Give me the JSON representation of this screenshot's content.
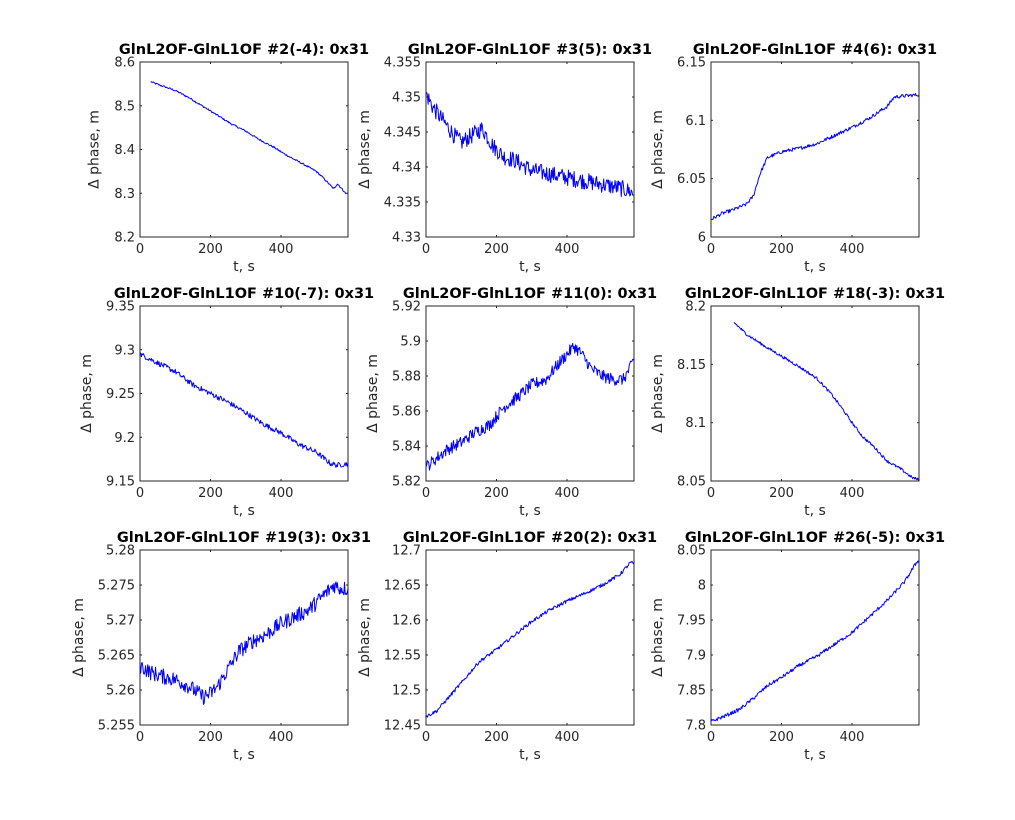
{
  "colors": {
    "line": "#0000ff",
    "axes": "#262626",
    "background": "#ffffff"
  },
  "chart_data": [
    {
      "type": "line",
      "title": "GlnL2OF-GlnL1OF #2(-4): 0x31",
      "xlabel": "t, s",
      "ylabel": "Δ phase, m",
      "xlim": [
        0,
        590
      ],
      "ylim": [
        8.2,
        8.6
      ],
      "xticks": [
        0,
        200,
        400
      ],
      "xtick_labels": [
        "0",
        "200",
        "400"
      ],
      "yticks": [
        8.2,
        8.3,
        8.4,
        8.5,
        8.6
      ],
      "ytick_labels": [
        "8.2",
        "8.3",
        "8.4",
        "8.5",
        "8.6"
      ],
      "series": [
        {
          "x": [
            30,
            60,
            100,
            140,
            180,
            220,
            260,
            300,
            340,
            380,
            420,
            460,
            500,
            520,
            540,
            550,
            560,
            575,
            585
          ],
          "y": [
            8.555,
            8.546,
            8.535,
            8.518,
            8.498,
            8.478,
            8.458,
            8.442,
            8.422,
            8.405,
            8.385,
            8.368,
            8.35,
            8.335,
            8.318,
            8.31,
            8.322,
            8.308,
            8.298
          ],
          "noise": 0.002
        }
      ]
    },
    {
      "type": "line",
      "title": "GlnL2OF-GlnL1OF #3(5): 0x31",
      "xlabel": "t, s",
      "ylabel": "Δ phase, m",
      "xlim": [
        0,
        590
      ],
      "ylim": [
        4.33,
        4.355
      ],
      "xticks": [
        0,
        200,
        400
      ],
      "xtick_labels": [
        "0",
        "200",
        "400"
      ],
      "yticks": [
        4.33,
        4.335,
        4.34,
        4.345,
        4.35,
        4.355
      ],
      "ytick_labels": [
        "4.33",
        "4.335",
        "4.34",
        "4.345",
        "4.35",
        "4.355"
      ],
      "series": [
        {
          "x": [
            0,
            20,
            50,
            80,
            100,
            130,
            160,
            190,
            220,
            250,
            300,
            350,
            400,
            450,
            500,
            550,
            580,
            590
          ],
          "y": [
            4.3505,
            4.3485,
            4.3465,
            4.3445,
            4.3435,
            4.3445,
            4.3455,
            4.343,
            4.3415,
            4.341,
            4.3395,
            4.339,
            4.3385,
            4.338,
            4.3375,
            4.337,
            4.3365,
            4.336
          ],
          "noise": 0.0012
        }
      ]
    },
    {
      "type": "line",
      "title": "GlnL2OF-GlnL1OF #4(6): 0x31",
      "xlabel": "t, s",
      "ylabel": "Δ phase, m",
      "xlim": [
        0,
        590
      ],
      "ylim": [
        6.0,
        6.15
      ],
      "xticks": [
        0,
        200,
        400
      ],
      "xtick_labels": [
        "0",
        "200",
        "400"
      ],
      "yticks": [
        6.0,
        6.05,
        6.1,
        6.15
      ],
      "ytick_labels": [
        "6",
        "6.05",
        "6.1",
        "6.15"
      ],
      "series": [
        {
          "x": [
            0,
            30,
            60,
            100,
            120,
            140,
            160,
            200,
            250,
            300,
            350,
            400,
            450,
            500,
            520,
            550,
            590
          ],
          "y": [
            6.015,
            6.02,
            6.023,
            6.028,
            6.035,
            6.055,
            6.068,
            6.073,
            6.076,
            6.08,
            6.087,
            6.094,
            6.102,
            6.112,
            6.12,
            6.121,
            6.122
          ],
          "noise": 0.0015
        }
      ]
    },
    {
      "type": "line",
      "title": "GlnL2OF-GlnL1OF #10(-7): 0x31",
      "xlabel": "t, s",
      "ylabel": "Δ phase, m",
      "xlim": [
        0,
        590
      ],
      "ylim": [
        9.15,
        9.35
      ],
      "xticks": [
        0,
        200,
        400
      ],
      "xtick_labels": [
        "0",
        "200",
        "400"
      ],
      "yticks": [
        9.15,
        9.2,
        9.25,
        9.3,
        9.35
      ],
      "ytick_labels": [
        "9.15",
        "9.2",
        "9.25",
        "9.3",
        "9.35"
      ],
      "series": [
        {
          "x": [
            0,
            50,
            100,
            150,
            200,
            250,
            300,
            350,
            400,
            450,
            500,
            540,
            560,
            590
          ],
          "y": [
            9.295,
            9.285,
            9.275,
            9.26,
            9.25,
            9.24,
            9.228,
            9.215,
            9.205,
            9.192,
            9.183,
            9.17,
            9.168,
            9.17
          ],
          "noise": 0.003
        }
      ]
    },
    {
      "type": "line",
      "title": "GlnL2OF-GlnL1OF #11(0): 0x31",
      "xlabel": "t, s",
      "ylabel": "Δ phase, m",
      "xlim": [
        0,
        590
      ],
      "ylim": [
        5.82,
        5.92
      ],
      "xticks": [
        0,
        200,
        400
      ],
      "xtick_labels": [
        "0",
        "200",
        "400"
      ],
      "yticks": [
        5.82,
        5.84,
        5.86,
        5.88,
        5.9,
        5.92
      ],
      "ytick_labels": [
        "5.82",
        "5.84",
        "5.86",
        "5.88",
        "5.9",
        "5.92"
      ],
      "series": [
        {
          "x": [
            0,
            30,
            60,
            100,
            140,
            180,
            220,
            260,
            300,
            340,
            380,
            420,
            440,
            470,
            500,
            530,
            560,
            580,
            590
          ],
          "y": [
            5.828,
            5.833,
            5.838,
            5.842,
            5.848,
            5.852,
            5.862,
            5.868,
            5.875,
            5.878,
            5.888,
            5.897,
            5.893,
            5.884,
            5.88,
            5.878,
            5.878,
            5.885,
            5.89
          ],
          "noise": 0.0035
        }
      ]
    },
    {
      "type": "line",
      "title": "GlnL2OF-GlnL1OF #18(-3): 0x31",
      "xlabel": "t, s",
      "ylabel": "Δ phase, m",
      "xlim": [
        0,
        590
      ],
      "ylim": [
        8.05,
        8.2
      ],
      "xticks": [
        0,
        200,
        400
      ],
      "xtick_labels": [
        "0",
        "200",
        "400"
      ],
      "yticks": [
        8.05,
        8.1,
        8.15,
        8.2
      ],
      "ytick_labels": [
        "8.05",
        "8.1",
        "8.15",
        "8.2"
      ],
      "series": [
        {
          "x": [
            65,
            100,
            150,
            200,
            250,
            300,
            340,
            370,
            400,
            430,
            460,
            500,
            540,
            570,
            590
          ],
          "y": [
            8.186,
            8.176,
            8.166,
            8.157,
            8.148,
            8.138,
            8.125,
            8.113,
            8.1,
            8.088,
            8.08,
            8.067,
            8.06,
            8.053,
            8.051
          ],
          "noise": 0.0012
        }
      ]
    },
    {
      "type": "line",
      "title": "GlnL2OF-GlnL1OF #19(3): 0x31",
      "xlabel": "t, s",
      "ylabel": "Δ phase, m",
      "xlim": [
        0,
        590
      ],
      "ylim": [
        5.255,
        5.28
      ],
      "xticks": [
        0,
        200,
        400
      ],
      "xtick_labels": [
        "0",
        "200",
        "400"
      ],
      "yticks": [
        5.255,
        5.26,
        5.265,
        5.27,
        5.275,
        5.28
      ],
      "ytick_labels": [
        "5.255",
        "5.26",
        "5.265",
        "5.27",
        "5.275",
        "5.28"
      ],
      "series": [
        {
          "x": [
            0,
            30,
            60,
            100,
            140,
            180,
            200,
            220,
            250,
            280,
            320,
            360,
            400,
            440,
            480,
            520,
            550,
            570,
            590
          ],
          "y": [
            5.2635,
            5.2625,
            5.262,
            5.2615,
            5.2605,
            5.259,
            5.2595,
            5.2605,
            5.263,
            5.2655,
            5.267,
            5.268,
            5.2695,
            5.2705,
            5.2715,
            5.2735,
            5.275,
            5.2745,
            5.2745
          ],
          "noise": 0.0011
        }
      ]
    },
    {
      "type": "line",
      "title": "GlnL2OF-GlnL1OF #20(2): 0x31",
      "xlabel": "t, s",
      "ylabel": "Δ phase, m",
      "xlim": [
        0,
        590
      ],
      "ylim": [
        12.45,
        12.7
      ],
      "xticks": [
        0,
        200,
        400
      ],
      "xtick_labels": [
        "0",
        "200",
        "400"
      ],
      "yticks": [
        12.45,
        12.5,
        12.55,
        12.6,
        12.65,
        12.7
      ],
      "ytick_labels": [
        "12.45",
        "12.5",
        "12.55",
        "12.6",
        "12.65",
        "12.7"
      ],
      "series": [
        {
          "x": [
            0,
            30,
            60,
            100,
            150,
            200,
            250,
            300,
            350,
            400,
            450,
            500,
            550,
            580,
            590
          ],
          "y": [
            12.462,
            12.47,
            12.487,
            12.51,
            12.54,
            12.558,
            12.578,
            12.598,
            12.614,
            12.627,
            12.638,
            12.65,
            12.665,
            12.682,
            12.681
          ],
          "noise": 0.0025
        }
      ]
    },
    {
      "type": "line",
      "title": "GlnL2OF-GlnL1OF #26(-5): 0x31",
      "xlabel": "t, s",
      "ylabel": "Δ phase, m",
      "xlim": [
        0,
        590
      ],
      "ylim": [
        7.8,
        8.05
      ],
      "xticks": [
        0,
        200,
        400
      ],
      "xtick_labels": [
        "0",
        "200",
        "400"
      ],
      "yticks": [
        7.8,
        7.85,
        7.9,
        7.95,
        8.0,
        8.05
      ],
      "ytick_labels": [
        "7.8",
        "7.85",
        "7.9",
        "7.95",
        "8",
        "8.05"
      ],
      "series": [
        {
          "x": [
            0,
            40,
            80,
            120,
            160,
            200,
            250,
            300,
            350,
            400,
            450,
            500,
            550,
            580,
            590
          ],
          "y": [
            7.805,
            7.813,
            7.822,
            7.838,
            7.856,
            7.868,
            7.885,
            7.898,
            7.915,
            7.932,
            7.955,
            7.978,
            8.005,
            8.03,
            8.036
          ],
          "noise": 0.0025
        }
      ]
    }
  ]
}
